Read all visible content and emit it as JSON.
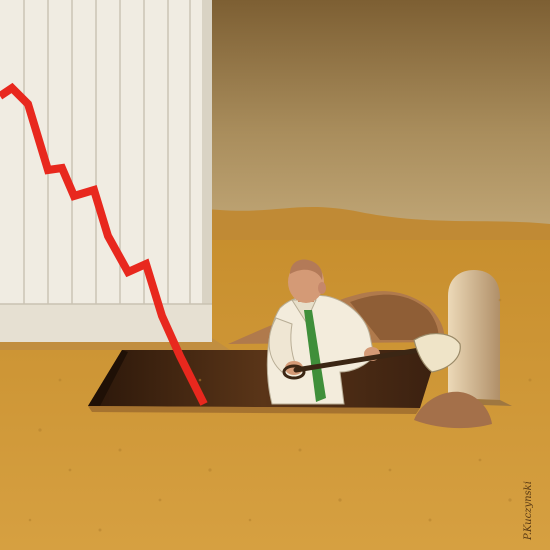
{
  "artwork": {
    "subject": "businessman-digging-grave-under-falling-chart",
    "colors": {
      "sky_top": "#8a6a3a",
      "sky_bottom": "#b9a070",
      "ground": "#cf9a3a",
      "board": "#eeeae0",
      "chart_line": "#e8281e",
      "hole": "#3a2212",
      "shirt": "#f2ead8",
      "tie": "#3f8f3a",
      "skin": "#d49a76",
      "tombstone": "#d8c2a0"
    },
    "signature": "P.Kuczynski"
  }
}
